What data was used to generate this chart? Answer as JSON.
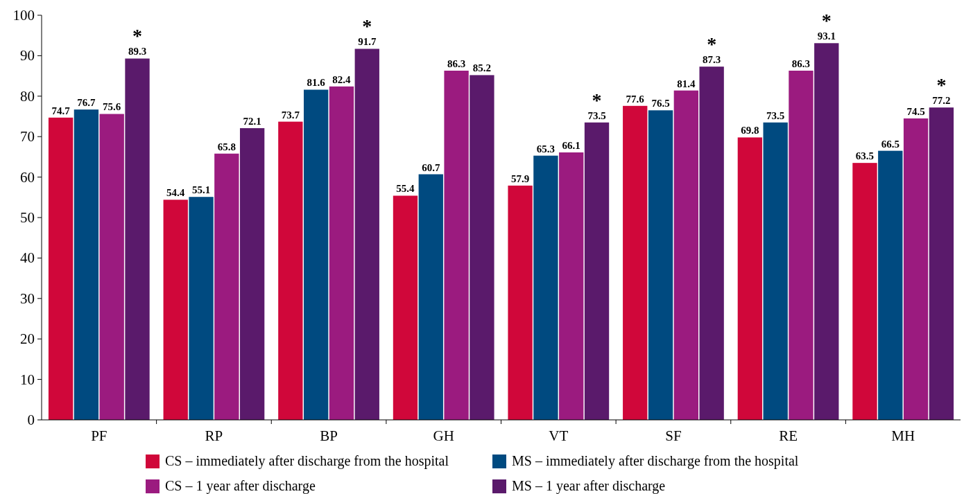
{
  "chart_data": {
    "type": "bar",
    "categories": [
      "PF",
      "RP",
      "BP",
      "GH",
      "VT",
      "SF",
      "RE",
      "MH"
    ],
    "series": [
      {
        "name": "CS – immediately after discharge from the hospital",
        "color": "#d0073a",
        "values": [
          74.7,
          54.4,
          73.7,
          55.4,
          57.9,
          77.6,
          69.8,
          63.5
        ],
        "value_labels": [
          "74.7",
          "54.4",
          "73.7",
          "55.4",
          "57.9",
          "77.6",
          "69.8",
          "63.5"
        ]
      },
      {
        "name": "MS – immediately after discharge from the hospital",
        "color": "#004a80",
        "values": [
          76.7,
          55.1,
          81.6,
          60.7,
          65.3,
          76.5,
          73.5,
          66.5
        ],
        "value_labels": [
          "76.7",
          "55.1",
          "81.6",
          "60.7",
          "65.3",
          "76.5",
          "73.5",
          "66.5"
        ]
      },
      {
        "name": "CS – 1 year after discharge",
        "color": "#9b1b7f",
        "values": [
          75.6,
          65.8,
          82.4,
          86.3,
          66.1,
          81.4,
          86.3,
          74.5
        ],
        "value_labels": [
          "75.6",
          "65.8",
          "82.4",
          "86.3",
          "66.1",
          "81.4",
          "86.3",
          "74.5"
        ]
      },
      {
        "name": "MS – 1 year after discharge",
        "color": "#5a1a6b",
        "values": [
          89.3,
          72.1,
          91.7,
          85.2,
          73.5,
          87.3,
          93.1,
          77.2
        ],
        "value_labels": [
          "*\n89.3",
          "72.1",
          "*\n91.7",
          "85.2",
          "*\n73.5",
          "*\n87.3",
          "*\n93.1",
          "*\n77.2"
        ]
      }
    ],
    "ylim": [
      0,
      100
    ],
    "yticks": [
      0,
      10,
      20,
      30,
      40,
      50,
      60,
      70,
      80,
      90,
      100
    ],
    "legend": "bottom"
  }
}
